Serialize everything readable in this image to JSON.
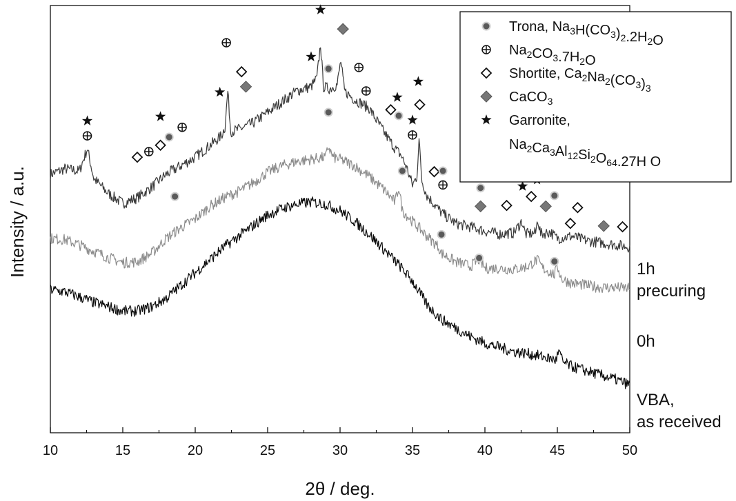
{
  "chart_data": {
    "type": "line",
    "xlabel": "2θ / deg.",
    "ylabel": "Intensity / a.u.",
    "xlim": [
      10,
      50
    ],
    "x_ticks": [
      "10",
      "15",
      "20",
      "25",
      "30",
      "35",
      "40",
      "45",
      "50"
    ],
    "grid": false,
    "legend_position": "top-right",
    "series": [
      {
        "name": "1h precuring",
        "label_lines": [
          "1h",
          "precuring"
        ],
        "color": "#3a3a3a",
        "points": [
          [
            10,
            0.605
          ],
          [
            11,
            0.618
          ],
          [
            12,
            0.612
          ],
          [
            12.55,
            0.665
          ],
          [
            13,
            0.595
          ],
          [
            14,
            0.56
          ],
          [
            15,
            0.537
          ],
          [
            16,
            0.55
          ],
          [
            17,
            0.575
          ],
          [
            18,
            0.605
          ],
          [
            19,
            0.625
          ],
          [
            20,
            0.645
          ],
          [
            21,
            0.672
          ],
          [
            21.8,
            0.695
          ],
          [
            22.05,
            0.715
          ],
          [
            22.25,
            0.8
          ],
          [
            22.45,
            0.705
          ],
          [
            23,
            0.71
          ],
          [
            24,
            0.725
          ],
          [
            25,
            0.75
          ],
          [
            26,
            0.775
          ],
          [
            27,
            0.8
          ],
          [
            28,
            0.81
          ],
          [
            28.4,
            0.83
          ],
          [
            28.65,
            0.91
          ],
          [
            28.85,
            0.81
          ],
          [
            29.3,
            0.805
          ],
          [
            29.8,
            0.815
          ],
          [
            30.05,
            0.87
          ],
          [
            30.3,
            0.8
          ],
          [
            31,
            0.78
          ],
          [
            32,
            0.76
          ],
          [
            33,
            0.705
          ],
          [
            33.8,
            0.665
          ],
          [
            34.2,
            0.65
          ],
          [
            34.6,
            0.62
          ],
          [
            35.0,
            0.58
          ],
          [
            35.3,
            0.6
          ],
          [
            35.45,
            0.685
          ],
          [
            35.65,
            0.59
          ],
          [
            36,
            0.555
          ],
          [
            37,
            0.515
          ],
          [
            38,
            0.49
          ],
          [
            39,
            0.482
          ],
          [
            40,
            0.472
          ],
          [
            41,
            0.465
          ],
          [
            42,
            0.468
          ],
          [
            42.55,
            0.495
          ],
          [
            42.8,
            0.465
          ],
          [
            43.5,
            0.468
          ],
          [
            43.65,
            0.5
          ],
          [
            43.85,
            0.465
          ],
          [
            44.5,
            0.47
          ],
          [
            45,
            0.455
          ],
          [
            46,
            0.46
          ],
          [
            47,
            0.45
          ],
          [
            48,
            0.445
          ],
          [
            49,
            0.44
          ],
          [
            50,
            0.435
          ]
        ]
      },
      {
        "name": "0h",
        "label_lines": [
          "0h"
        ],
        "color": "#8c8c8c",
        "points": [
          [
            10,
            0.455
          ],
          [
            11,
            0.452
          ],
          [
            12,
            0.44
          ],
          [
            13,
            0.425
          ],
          [
            14,
            0.41
          ],
          [
            15,
            0.398
          ],
          [
            16,
            0.4
          ],
          [
            17,
            0.42
          ],
          [
            18,
            0.455
          ],
          [
            19,
            0.48
          ],
          [
            20,
            0.5
          ],
          [
            21,
            0.53
          ],
          [
            22,
            0.55
          ],
          [
            23,
            0.565
          ],
          [
            24,
            0.585
          ],
          [
            25,
            0.61
          ],
          [
            26,
            0.625
          ],
          [
            27,
            0.635
          ],
          [
            28,
            0.64
          ],
          [
            29,
            0.645
          ],
          [
            29.2,
            0.67
          ],
          [
            29.5,
            0.645
          ],
          [
            30,
            0.64
          ],
          [
            31,
            0.625
          ],
          [
            32,
            0.6
          ],
          [
            33,
            0.57
          ],
          [
            33.8,
            0.54
          ],
          [
            34.05,
            0.575
          ],
          [
            34.3,
            0.52
          ],
          [
            35,
            0.495
          ],
          [
            36,
            0.46
          ],
          [
            36.8,
            0.435
          ],
          [
            37,
            0.42
          ],
          [
            38,
            0.4
          ],
          [
            39,
            0.39
          ],
          [
            39.6,
            0.405
          ],
          [
            40,
            0.385
          ],
          [
            41,
            0.385
          ],
          [
            42,
            0.382
          ],
          [
            43,
            0.39
          ],
          [
            43.6,
            0.405
          ],
          [
            44,
            0.385
          ],
          [
            44.8,
            0.37
          ],
          [
            45,
            0.39
          ],
          [
            45.3,
            0.36
          ],
          [
            46,
            0.35
          ],
          [
            47,
            0.345
          ],
          [
            48,
            0.34
          ],
          [
            49,
            0.34
          ],
          [
            50,
            0.338
          ]
        ]
      },
      {
        "name": "VBA, as received",
        "label_lines": [
          "VBA,",
          "as received"
        ],
        "color": "#0a0a0a",
        "points": [
          [
            10,
            0.335
          ],
          [
            11,
            0.33
          ],
          [
            12,
            0.318
          ],
          [
            13,
            0.305
          ],
          [
            14,
            0.295
          ],
          [
            15,
            0.285
          ],
          [
            16,
            0.285
          ],
          [
            17,
            0.295
          ],
          [
            18,
            0.315
          ],
          [
            19,
            0.345
          ],
          [
            20,
            0.375
          ],
          [
            21,
            0.405
          ],
          [
            22,
            0.435
          ],
          [
            23,
            0.46
          ],
          [
            24,
            0.485
          ],
          [
            25,
            0.51
          ],
          [
            26,
            0.525
          ],
          [
            27,
            0.535
          ],
          [
            28,
            0.54
          ],
          [
            29,
            0.535
          ],
          [
            30,
            0.52
          ],
          [
            31,
            0.495
          ],
          [
            32,
            0.465
          ],
          [
            33,
            0.43
          ],
          [
            34,
            0.395
          ],
          [
            35,
            0.355
          ],
          [
            36,
            0.3
          ],
          [
            37,
            0.265
          ],
          [
            38,
            0.245
          ],
          [
            39,
            0.225
          ],
          [
            40,
            0.21
          ],
          [
            41,
            0.2
          ],
          [
            42,
            0.19
          ],
          [
            43,
            0.185
          ],
          [
            44,
            0.178
          ],
          [
            44.9,
            0.17
          ],
          [
            45.1,
            0.19
          ],
          [
            45.4,
            0.165
          ],
          [
            46,
            0.155
          ],
          [
            47,
            0.145
          ],
          [
            48,
            0.135
          ],
          [
            49,
            0.125
          ],
          [
            50,
            0.112
          ]
        ]
      }
    ],
    "legend": [
      {
        "marker": "trona",
        "parts": [
          [
            "Trona, Na",
            ""
          ],
          [
            "3",
            "sub"
          ],
          [
            "H(CO",
            ""
          ],
          [
            "3",
            "sub"
          ],
          [
            ")",
            ""
          ],
          [
            "2",
            "sub"
          ],
          [
            ".2H",
            ""
          ],
          [
            "2",
            "sub"
          ],
          [
            "O",
            ""
          ]
        ]
      },
      {
        "marker": "na2co3",
        "parts": [
          [
            "Na",
            ""
          ],
          [
            "2",
            "sub"
          ],
          [
            "CO",
            ""
          ],
          [
            "3",
            "sub"
          ],
          [
            ".7H",
            ""
          ],
          [
            "2",
            "sub"
          ],
          [
            "O",
            ""
          ]
        ]
      },
      {
        "marker": "shortite",
        "parts": [
          [
            "Shortite, Ca",
            ""
          ],
          [
            "2",
            "sub"
          ],
          [
            "Na",
            ""
          ],
          [
            "2",
            "sub"
          ],
          [
            "(CO",
            ""
          ],
          [
            "3",
            "sub"
          ],
          [
            ")",
            ""
          ],
          [
            "3",
            "sub"
          ]
        ]
      },
      {
        "marker": "caco3",
        "parts": [
          [
            "CaCO",
            ""
          ],
          [
            "3",
            "sub"
          ]
        ]
      },
      {
        "marker": "garronite",
        "parts": [
          [
            "Garronite,",
            ""
          ]
        ]
      },
      {
        "marker": "none",
        "parts": [
          [
            "Na",
            ""
          ],
          [
            "2",
            "sub"
          ],
          [
            "Ca",
            ""
          ],
          [
            "3",
            "sub"
          ],
          [
            "Al",
            ""
          ],
          [
            "12",
            "sub"
          ],
          [
            "Si",
            ""
          ],
          [
            "2",
            "sub"
          ],
          [
            "O",
            ""
          ],
          [
            "64",
            "sub"
          ],
          [
            ".27H O",
            ""
          ]
        ]
      }
    ],
    "phase_markers": [
      {
        "type": "garronite",
        "x": 12.55,
        "y": 0.73
      },
      {
        "type": "na2co3",
        "x": 12.55,
        "y": 0.695
      },
      {
        "type": "shortite",
        "x": 16.0,
        "y": 0.645
      },
      {
        "type": "na2co3",
        "x": 16.8,
        "y": 0.658
      },
      {
        "type": "shortite",
        "x": 17.6,
        "y": 0.673
      },
      {
        "type": "garronite",
        "x": 17.6,
        "y": 0.74
      },
      {
        "type": "trona",
        "x": 18.2,
        "y": 0.692
      },
      {
        "type": "na2co3",
        "x": 19.1,
        "y": 0.715
      },
      {
        "type": "garronite",
        "x": 21.7,
        "y": 0.797
      },
      {
        "type": "na2co3",
        "x": 22.15,
        "y": 0.913
      },
      {
        "type": "shortite",
        "x": 23.2,
        "y": 0.845
      },
      {
        "type": "caco3",
        "x": 23.5,
        "y": 0.81
      },
      {
        "type": "garronite",
        "x": 28.0,
        "y": 0.88
      },
      {
        "type": "garronite",
        "x": 28.65,
        "y": 0.99
      },
      {
        "type": "trona",
        "x": 29.2,
        "y": 0.852
      },
      {
        "type": "caco3",
        "x": 30.2,
        "y": 0.945
      },
      {
        "type": "na2co3",
        "x": 31.3,
        "y": 0.855
      },
      {
        "type": "na2co3",
        "x": 31.8,
        "y": 0.8
      },
      {
        "type": "shortite",
        "x": 33.5,
        "y": 0.756
      },
      {
        "type": "garronite",
        "x": 33.95,
        "y": 0.785
      },
      {
        "type": "trona",
        "x": 34.05,
        "y": 0.742
      },
      {
        "type": "shortite",
        "x": 35.5,
        "y": 0.768
      },
      {
        "type": "garronite",
        "x": 35.4,
        "y": 0.822
      },
      {
        "type": "garronite",
        "x": 35.0,
        "y": 0.732
      },
      {
        "type": "na2co3",
        "x": 35.0,
        "y": 0.697
      },
      {
        "type": "shortite",
        "x": 36.5,
        "y": 0.611
      },
      {
        "type": "trona",
        "x": 37.1,
        "y": 0.613
      },
      {
        "type": "na2co3",
        "x": 37.1,
        "y": 0.58
      },
      {
        "type": "trona",
        "x": 39.7,
        "y": 0.573
      },
      {
        "type": "caco3",
        "x": 39.7,
        "y": 0.53
      },
      {
        "type": "shortite",
        "x": 41.5,
        "y": 0.532
      },
      {
        "type": "garronite",
        "x": 42.6,
        "y": 0.577
      },
      {
        "type": "shortite",
        "x": 43.2,
        "y": 0.553
      },
      {
        "type": "garronite",
        "x": 43.6,
        "y": 0.592
      },
      {
        "type": "caco3",
        "x": 44.2,
        "y": 0.53
      },
      {
        "type": "trona",
        "x": 44.8,
        "y": 0.555
      },
      {
        "type": "shortite",
        "x": 45.9,
        "y": 0.49
      },
      {
        "type": "shortite",
        "x": 46.4,
        "y": 0.527
      },
      {
        "type": "caco3",
        "x": 48.2,
        "y": 0.484
      },
      {
        "type": "shortite",
        "x": 49.5,
        "y": 0.482
      },
      {
        "type": "trona",
        "x": 18.6,
        "y": 0.553
      },
      {
        "type": "trona",
        "x": 29.2,
        "y": 0.75
      },
      {
        "type": "trona",
        "x": 34.3,
        "y": 0.613
      },
      {
        "type": "trona",
        "x": 37.0,
        "y": 0.464
      },
      {
        "type": "trona",
        "x": 39.6,
        "y": 0.409
      },
      {
        "type": "trona",
        "x": 44.8,
        "y": 0.401
      }
    ]
  }
}
